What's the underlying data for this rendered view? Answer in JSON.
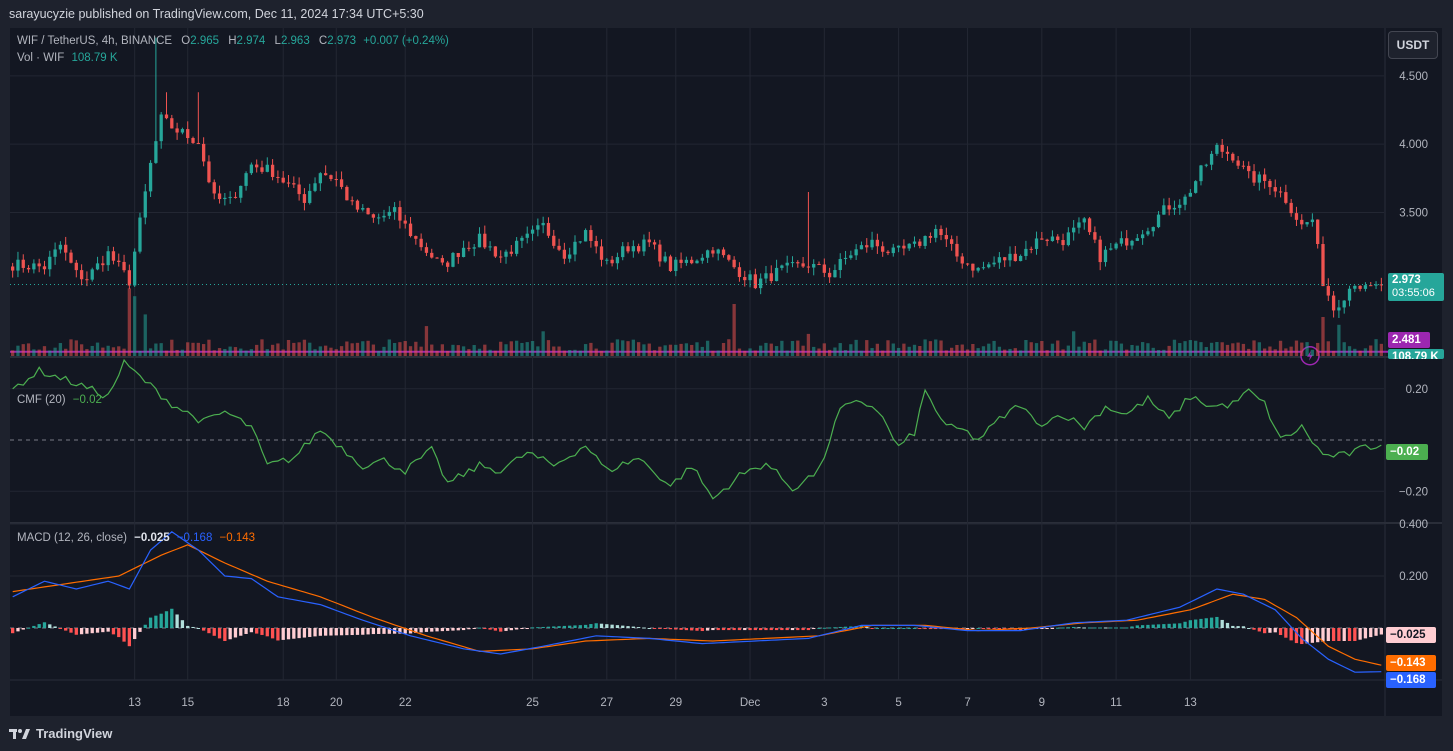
{
  "header": {
    "publisher_text": "sarayucyzie published on TradingView.com, Dec 11, 2024 17:34 UTC+5:30"
  },
  "footer": {
    "brand": "TradingView"
  },
  "legend": {
    "symbol": "WIF / TetherUS, 4h, BINANCE",
    "open_key": "O",
    "open": "2.965",
    "high_key": "H",
    "high": "2.974",
    "low_key": "L",
    "low": "2.963",
    "close_key": "C",
    "close": "2.973",
    "change": "+0.007 (+0.24%)",
    "vol_label": "Vol · WIF",
    "vol_value": "108.79 K",
    "cmf_label": "CMF (20)",
    "cmf_value": "−0.02",
    "macd_label": "MACD (12, 26, close)",
    "macd_hist": "−0.025",
    "macd_line": "−0.168",
    "macd_signal": "−0.143"
  },
  "currency_button": "USDT",
  "price_tags": {
    "last_price": "2.973",
    "countdown": "03:55:06",
    "hline": "2.481",
    "volume": "108.79 K",
    "cmf": "−0.02",
    "macd_hist": "−0.025",
    "macd_signal": "−0.143",
    "macd_line": "−0.168"
  },
  "colors": {
    "up": "#26a69a",
    "down": "#ef5350",
    "background": "#1e222d",
    "cmf_line": "#4caf50",
    "macd_line": "#2962ff",
    "signal_line": "#ff6d00",
    "hline": "#9c27b0"
  },
  "chart_data": [
    {
      "type": "candlestick",
      "title": "WIF / TetherUS, 4h, BINANCE",
      "x_ticks": [
        "13",
        "15",
        "18",
        "20",
        "22",
        "25",
        "27",
        "29",
        "Dec",
        "3",
        "5",
        "7",
        "9",
        "11",
        "13"
      ],
      "y_ticks": [
        "4.500",
        "4.000",
        "3.500"
      ],
      "ylim": [
        2.45,
        4.85
      ],
      "last_price": 2.973,
      "horizontal_line": 2.481,
      "grid": true,
      "anchors": [
        [
          0,
          3.12
        ],
        [
          6,
          3.1
        ],
        [
          9,
          3.26
        ],
        [
          12,
          3.05
        ],
        [
          14,
          3.02
        ],
        [
          18,
          3.2
        ],
        [
          22,
          3.0
        ],
        [
          26,
          3.85
        ],
        [
          28,
          4.18
        ],
        [
          31,
          4.1
        ],
        [
          35,
          4.02
        ],
        [
          38,
          3.6
        ],
        [
          41,
          3.58
        ],
        [
          45,
          3.85
        ],
        [
          49,
          3.8
        ],
        [
          52,
          3.7
        ],
        [
          55,
          3.6
        ],
        [
          58,
          3.8
        ],
        [
          61,
          3.74
        ],
        [
          64,
          3.55
        ],
        [
          68,
          3.45
        ],
        [
          72,
          3.5
        ],
        [
          76,
          3.3
        ],
        [
          81,
          3.1
        ],
        [
          85,
          3.25
        ],
        [
          88,
          3.3
        ],
        [
          92,
          3.18
        ],
        [
          96,
          3.28
        ],
        [
          100,
          3.4
        ],
        [
          104,
          3.2
        ],
        [
          108,
          3.35
        ],
        [
          112,
          3.12
        ],
        [
          116,
          3.25
        ],
        [
          120,
          3.27
        ],
        [
          124,
          3.1
        ],
        [
          128,
          3.15
        ],
        [
          132,
          3.24
        ],
        [
          136,
          3.1
        ],
        [
          140,
          2.98
        ],
        [
          145,
          3.08
        ],
        [
          150,
          3.12
        ],
        [
          154,
          3.05
        ],
        [
          158,
          3.2
        ],
        [
          162,
          3.28
        ],
        [
          166,
          3.2
        ],
        [
          170,
          3.25
        ],
        [
          174,
          3.38
        ],
        [
          178,
          3.18
        ],
        [
          182,
          3.08
        ],
        [
          186,
          3.15
        ],
        [
          190,
          3.2
        ],
        [
          194,
          3.32
        ],
        [
          198,
          3.3
        ],
        [
          202,
          3.42
        ],
        [
          205,
          3.18
        ],
        [
          210,
          3.3
        ],
        [
          214,
          3.4
        ],
        [
          218,
          3.55
        ],
        [
          221,
          3.6
        ],
        [
          224,
          3.8
        ],
        [
          227,
          3.97
        ],
        [
          230,
          3.92
        ],
        [
          233,
          3.76
        ],
        [
          237,
          3.72
        ],
        [
          240,
          3.6
        ],
        [
          243,
          3.4
        ],
        [
          245,
          3.45
        ],
        [
          247,
          3.0
        ],
        [
          249,
          2.8
        ],
        [
          251,
          2.9
        ],
        [
          253,
          3.0
        ],
        [
          255,
          2.93
        ],
        [
          257,
          2.95
        ],
        [
          258,
          2.973
        ]
      ],
      "volume_series": {
        "name": "Vol · WIF",
        "last": "108.79 K",
        "spikes": [
          [
            22,
            5.2
          ],
          [
            23,
            4.6
          ],
          [
            25,
            3.2
          ],
          [
            78,
            2.3
          ],
          [
            100,
            1.9
          ],
          [
            136,
            4.0
          ],
          [
            150,
            1.7
          ],
          [
            200,
            1.9
          ],
          [
            247,
            3.0
          ],
          [
            250,
            2.4
          ]
        ]
      }
    },
    {
      "type": "line",
      "title": "CMF (20)",
      "last_value": -0.02,
      "y_ticks": [
        "0.20",
        "−0.20"
      ],
      "ylim": [
        -0.32,
        0.32
      ],
      "series": [
        {
          "name": "CMF (20)",
          "anchors": [
            [
              0,
              0.2
            ],
            [
              5,
              0.27
            ],
            [
              12,
              0.22
            ],
            [
              18,
              0.17
            ],
            [
              21,
              0.3
            ],
            [
              30,
              0.14
            ],
            [
              36,
              0.07
            ],
            [
              40,
              0.11
            ],
            [
              45,
              0.05
            ],
            [
              48,
              -0.1
            ],
            [
              53,
              -0.07
            ],
            [
              58,
              0.04
            ],
            [
              62,
              -0.03
            ],
            [
              66,
              -0.1
            ],
            [
              70,
              -0.08
            ],
            [
              74,
              -0.12
            ],
            [
              79,
              -0.04
            ],
            [
              82,
              -0.17
            ],
            [
              88,
              -0.1
            ],
            [
              92,
              -0.12
            ],
            [
              97,
              -0.05
            ],
            [
              102,
              -0.1
            ],
            [
              108,
              -0.02
            ],
            [
              112,
              -0.12
            ],
            [
              118,
              -0.07
            ],
            [
              124,
              -0.18
            ],
            [
              128,
              -0.1
            ],
            [
              132,
              -0.23
            ],
            [
              137,
              -0.14
            ],
            [
              142,
              -0.09
            ],
            [
              147,
              -0.19
            ],
            [
              152,
              -0.12
            ],
            [
              156,
              0.12
            ],
            [
              160,
              0.15
            ],
            [
              163,
              0.12
            ],
            [
              167,
              -0.03
            ],
            [
              170,
              0.03
            ],
            [
              172,
              0.19
            ],
            [
              176,
              0.05
            ],
            [
              179,
              0.04
            ],
            [
              182,
              0.0
            ],
            [
              186,
              0.08
            ],
            [
              190,
              0.14
            ],
            [
              193,
              0.06
            ],
            [
              198,
              0.1
            ],
            [
              202,
              0.05
            ],
            [
              206,
              0.13
            ],
            [
              210,
              0.1
            ],
            [
              214,
              0.16
            ],
            [
              218,
              0.08
            ],
            [
              222,
              0.17
            ],
            [
              226,
              0.13
            ],
            [
              230,
              0.14
            ],
            [
              233,
              0.19
            ],
            [
              236,
              0.14
            ],
            [
              239,
              0.0
            ],
            [
              243,
              0.05
            ],
            [
              247,
              -0.06
            ],
            [
              251,
              -0.06
            ],
            [
              255,
              -0.03
            ],
            [
              258,
              -0.02
            ]
          ]
        }
      ]
    },
    {
      "type": "line",
      "title": "MACD (12, 26, close)",
      "y_ticks": [
        "0.400",
        "0.200"
      ],
      "ylim": [
        -0.2,
        0.4
      ],
      "series": [
        {
          "name": "MACD",
          "last": -0.168,
          "anchors": [
            [
              0,
              0.12
            ],
            [
              6,
              0.18
            ],
            [
              12,
              0.15
            ],
            [
              18,
              0.18
            ],
            [
              22,
              0.15
            ],
            [
              26,
              0.3
            ],
            [
              30,
              0.37
            ],
            [
              35,
              0.3
            ],
            [
              40,
              0.2
            ],
            [
              45,
              0.19
            ],
            [
              50,
              0.12
            ],
            [
              58,
              0.09
            ],
            [
              66,
              0.03
            ],
            [
              75,
              -0.03
            ],
            [
              85,
              -0.08
            ],
            [
              92,
              -0.1
            ],
            [
              100,
              -0.07
            ],
            [
              110,
              -0.03
            ],
            [
              120,
              -0.04
            ],
            [
              130,
              -0.06
            ],
            [
              140,
              -0.05
            ],
            [
              150,
              -0.04
            ],
            [
              160,
              0.01
            ],
            [
              170,
              0.01
            ],
            [
              180,
              -0.01
            ],
            [
              190,
              -0.01
            ],
            [
              200,
              0.02
            ],
            [
              210,
              0.03
            ],
            [
              220,
              0.08
            ],
            [
              227,
              0.15
            ],
            [
              232,
              0.13
            ],
            [
              238,
              0.07
            ],
            [
              243,
              -0.04
            ],
            [
              248,
              -0.12
            ],
            [
              253,
              -0.17
            ],
            [
              258,
              -0.168
            ]
          ]
        },
        {
          "name": "Signal",
          "last": -0.143,
          "anchors": [
            [
              0,
              0.14
            ],
            [
              10,
              0.17
            ],
            [
              20,
              0.2
            ],
            [
              28,
              0.28
            ],
            [
              33,
              0.32
            ],
            [
              40,
              0.25
            ],
            [
              48,
              0.18
            ],
            [
              58,
              0.12
            ],
            [
              68,
              0.04
            ],
            [
              78,
              -0.03
            ],
            [
              88,
              -0.09
            ],
            [
              98,
              -0.08
            ],
            [
              108,
              -0.05
            ],
            [
              120,
              -0.04
            ],
            [
              132,
              -0.05
            ],
            [
              142,
              -0.04
            ],
            [
              152,
              -0.03
            ],
            [
              162,
              0.01
            ],
            [
              172,
              0.01
            ],
            [
              182,
              -0.01
            ],
            [
              192,
              0.0
            ],
            [
              202,
              0.02
            ],
            [
              212,
              0.03
            ],
            [
              222,
              0.07
            ],
            [
              230,
              0.13
            ],
            [
              236,
              0.11
            ],
            [
              242,
              0.04
            ],
            [
              248,
              -0.07
            ],
            [
              253,
              -0.12
            ],
            [
              258,
              -0.143
            ]
          ]
        }
      ],
      "histogram": {
        "name": "Histogram",
        "last": -0.025
      }
    }
  ]
}
